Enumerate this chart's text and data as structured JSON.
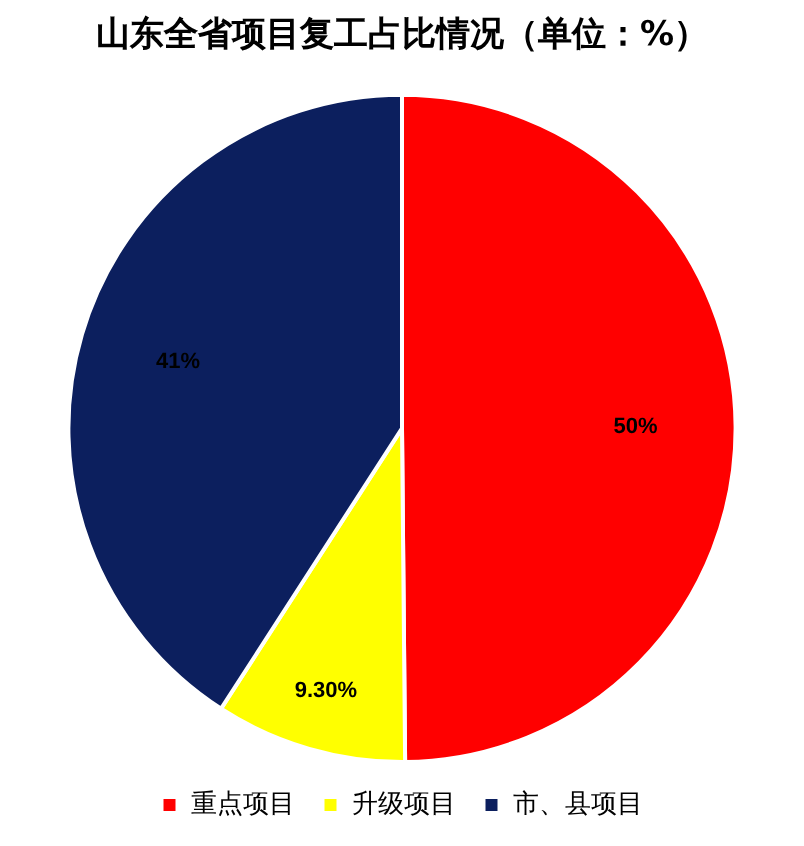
{
  "chart_data": {
    "type": "pie",
    "title": "山东全省项目复工占比情况（单位：%）",
    "categories": [
      "重点项目",
      "升级项目",
      "市、县项目"
    ],
    "values": [
      50,
      9.3,
      41
    ],
    "value_labels": [
      "50%",
      "9.30%",
      "41%"
    ],
    "colors": [
      "#ff0000",
      "#ffff00",
      "#0c1f5e"
    ],
    "legend": "bottom"
  }
}
